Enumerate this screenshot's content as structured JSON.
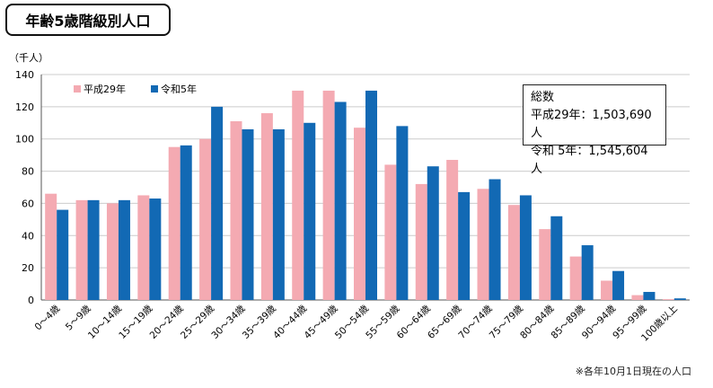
{
  "title": "年齢5歳階級別人口",
  "unit_label": "（千人）",
  "note": "※各年10月1日現在の人口",
  "totals": {
    "heading": "総数",
    "lines": [
      "平成29年：1,503,690人",
      "令和  5年：1,545,604人"
    ]
  },
  "colors": {
    "h29": "#f4aab2",
    "r5": "#1269b4",
    "grid": "#cccccc",
    "axis": "#555555"
  },
  "chart_data": {
    "type": "bar",
    "ylim": [
      0,
      140
    ],
    "yticks": [
      0,
      20,
      40,
      60,
      80,
      100,
      120,
      140
    ],
    "categories": [
      "0～4歳",
      "5～9歳",
      "10～14歳",
      "15～19歳",
      "20～24歳",
      "25～29歳",
      "30～34歳",
      "35～39歳",
      "40～44歳",
      "45～49歳",
      "50～54歳",
      "55～59歳",
      "60～64歳",
      "65～69歳",
      "70～74歳",
      "75～79歳",
      "80～84歳",
      "85～89歳",
      "90～94歳",
      "95～99歳",
      "100歳以上"
    ],
    "series": [
      {
        "name": "平成29年",
        "values": [
          66,
          62,
          60,
          65,
          95,
          100,
          111,
          116,
          130,
          130,
          107,
          84,
          72,
          87,
          69,
          59,
          44,
          27,
          12,
          3,
          0.5
        ]
      },
      {
        "name": "令和5年",
        "values": [
          56,
          62,
          62,
          63,
          96,
          120,
          106,
          106,
          110,
          123,
          130,
          108,
          83,
          67,
          75,
          65,
          52,
          34,
          18,
          5,
          1
        ]
      }
    ],
    "grid": true,
    "legend": "top-left"
  }
}
